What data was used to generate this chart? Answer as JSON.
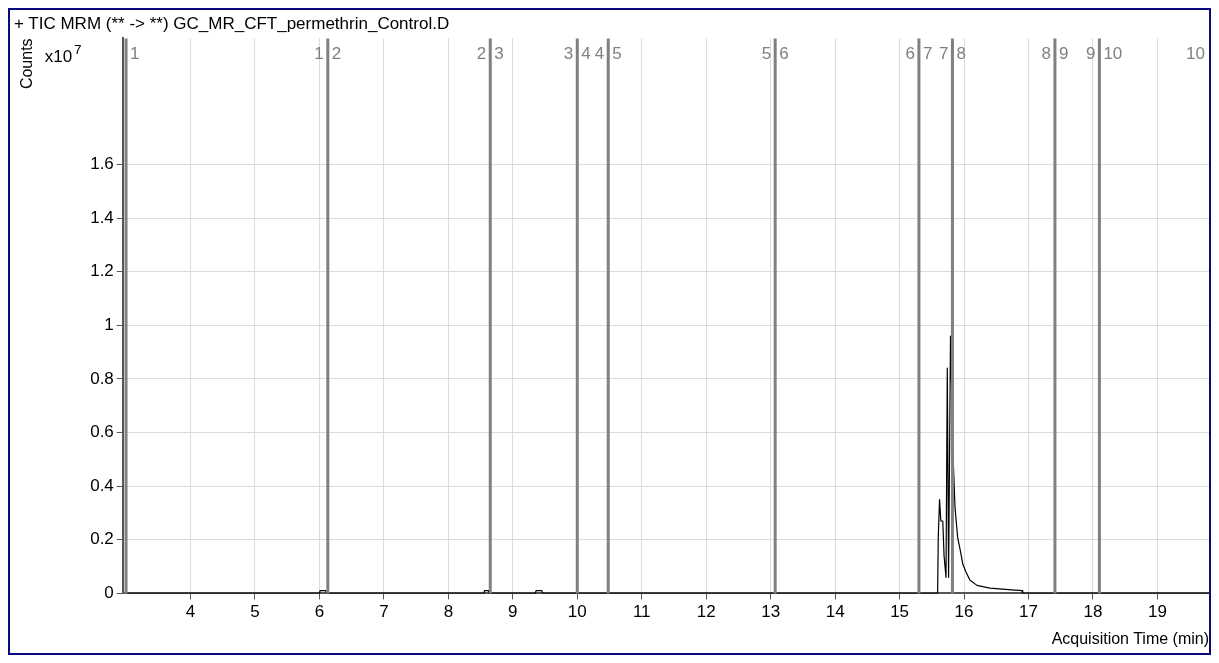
{
  "chart_data": {
    "type": "line",
    "title": "+ TIC MRM (** -> **) GC_MR_CFT_permethrin_Control.D",
    "xlabel": "Acquisition Time (min)",
    "ylabel": "Counts",
    "annotations": [
      "x10$^{7}$",
      "1",
      "1",
      "2",
      "2",
      "3",
      "3",
      "4",
      "4",
      "5",
      "5",
      "6",
      "6",
      "7",
      "7",
      "8",
      "8",
      "9",
      "9",
      "10",
      "10"
    ],
    "x": [
      3.0,
      6.0,
      6.01,
      6.1,
      6.11,
      8.55,
      8.56,
      8.62,
      8.63,
      9.35,
      9.36,
      9.45,
      9.46,
      15.59,
      15.6,
      15.62,
      15.64,
      15.67,
      15.69,
      15.72,
      15.74,
      15.76,
      15.79,
      15.83,
      15.86,
      15.9,
      15.95,
      15.98,
      16.03,
      16.09,
      16.2,
      16.4,
      16.9,
      16.91,
      19.8
    ],
    "series": [
      {
        "color": "#000000",
        "values": [
          0,
          0,
          0.01,
          0.01,
          0,
          0,
          0.01,
          0.01,
          0,
          0,
          0.01,
          0.01,
          0,
          0,
          0.21,
          0.35,
          0.27,
          0.27,
          0.14,
          0.06,
          0.84,
          0.06,
          0.96,
          0.51,
          0.32,
          0.21,
          0.15,
          0.11,
          0.08,
          0.05,
          0.03,
          0.02,
          0.01,
          0,
          0
        ]
      }
    ],
    "xlim": [
      2.95,
      19.8
    ],
    "xticks": [
      4,
      5,
      6,
      7,
      8,
      9,
      10,
      11,
      12,
      13,
      14,
      15,
      16,
      17,
      18,
      19
    ],
    "ylim": [
      0,
      2.07
    ],
    "yticks": [
      0,
      0.2,
      0.4,
      0.6,
      0.8,
      1,
      1.2,
      1.4,
      1.6
    ],
    "ref_lines": [
      {
        "axis": "x",
        "value": 3.0,
        "color": "#808080"
      },
      {
        "axis": "x",
        "value": 6.13,
        "color": "#808080"
      },
      {
        "axis": "x",
        "value": 8.65,
        "color": "#808080"
      },
      {
        "axis": "x",
        "value": 10.0,
        "color": "#808080"
      },
      {
        "axis": "x",
        "value": 10.48,
        "color": "#808080"
      },
      {
        "axis": "x",
        "value": 13.07,
        "color": "#808080"
      },
      {
        "axis": "x",
        "value": 15.3,
        "color": "#808080"
      },
      {
        "axis": "x",
        "value": 15.82,
        "color": "#808080"
      },
      {
        "axis": "x",
        "value": 17.41,
        "color": "#808080"
      },
      {
        "axis": "x",
        "value": 18.1,
        "color": "#808080"
      }
    ],
    "grid": true,
    "marker": "none",
    "line_style": "solid",
    "legend": false
  }
}
